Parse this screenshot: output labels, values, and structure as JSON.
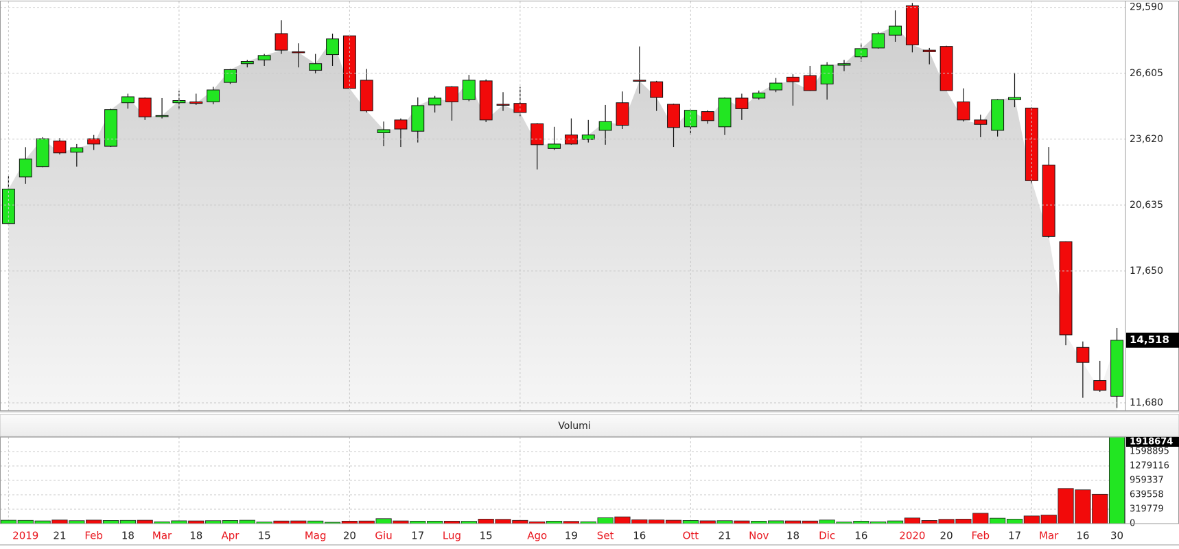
{
  "chart_data": [
    {
      "type": "candlestick",
      "open": [
        19800,
        21910,
        22380,
        23540,
        23030,
        23640,
        23300,
        25270,
        25480,
        24660,
        25270,
        25310,
        25310,
        26190,
        27040,
        27210,
        28400,
        27580,
        26740,
        27450,
        28300,
        26290,
        23910,
        24490,
        23980,
        25170,
        25990,
        25410,
        26260,
        25200,
        25240,
        24320,
        23200,
        23810,
        23610,
        24020,
        25270,
        26290,
        26220,
        25200,
        24180,
        24870,
        24180,
        25480,
        25480,
        25850,
        26430,
        26500,
        26120,
        26970,
        27350,
        27750,
        28330,
        29660,
        27650,
        27820,
        25310,
        24490,
        24020,
        25410,
        25030,
        22450,
        18980,
        14190,
        12690,
        11980
      ],
      "high": [
        21940,
        23260,
        23710,
        23670,
        23400,
        23810,
        25000,
        25680,
        25510,
        25480,
        25820,
        25680,
        25990,
        26800,
        27210,
        27480,
        29010,
        27960,
        27480,
        28400,
        28330,
        26800,
        24420,
        24560,
        25510,
        25580,
        26020,
        26530,
        26330,
        25750,
        25990,
        24350,
        24180,
        24560,
        24490,
        25170,
        25780,
        27820,
        26260,
        25230,
        25000,
        24930,
        25510,
        25680,
        25820,
        26390,
        26560,
        26940,
        27110,
        27210,
        27960,
        28470,
        29450,
        29790,
        27750,
        27850,
        25920,
        24730,
        25440,
        26630,
        25060,
        23270,
        19000,
        14460,
        13580,
        15070
      ],
      "low": [
        19730,
        21600,
        22350,
        22930,
        22380,
        23130,
        23270,
        25000,
        24490,
        24560,
        24960,
        25170,
        25200,
        26120,
        26870,
        26940,
        27480,
        26870,
        26600,
        26940,
        25900,
        24830,
        23300,
        23270,
        23470,
        24830,
        24460,
        25340,
        24390,
        24900,
        24660,
        22250,
        23130,
        23370,
        23470,
        23370,
        24080,
        25680,
        24900,
        23270,
        23810,
        24320,
        23810,
        24490,
        25410,
        25750,
        25140,
        25800,
        25410,
        26700,
        27140,
        27720,
        28030,
        27550,
        27010,
        25800,
        24420,
        23710,
        23740,
        25070,
        21600,
        19150,
        14290,
        11910,
        12180,
        11450
      ],
      "close": [
        21360,
        22720,
        23640,
        23000,
        23230,
        23400,
        24960,
        25540,
        24630,
        24690,
        25370,
        25240,
        25850,
        26770,
        27140,
        27410,
        27650,
        27550,
        27040,
        28160,
        25920,
        24900,
        24050,
        24080,
        25140,
        25480,
        25310,
        26290,
        24490,
        25170,
        24830,
        23370,
        23400,
        23400,
        23810,
        24420,
        24250,
        26260,
        25510,
        24150,
        24930,
        24460,
        25480,
        25000,
        25710,
        26160,
        26220,
        25820,
        26970,
        27040,
        27720,
        28400,
        28740,
        27890,
        27580,
        25820,
        24490,
        24290,
        25410,
        25510,
        21740,
        19220,
        14760,
        13510,
        12250,
        14518
      ],
      "last_close_label": "14,518",
      "up_color": "#22e622",
      "down_color": "#f20a0a",
      "ylim": [
        11340,
        29860
      ],
      "yticks": [
        {
          "value": 11680,
          "label": "11,680"
        },
        {
          "value": 17650,
          "label": "17,650"
        },
        {
          "value": 20635,
          "label": "20,635"
        },
        {
          "value": 23620,
          "label": "23,620"
        },
        {
          "value": 26605,
          "label": "26,605"
        },
        {
          "value": 29590,
          "label": "29,590"
        }
      ],
      "grid": true
    },
    {
      "type": "bar",
      "title": "Volumi",
      "categories": [
        null,
        "2019",
        null,
        "21",
        null,
        "Feb",
        null,
        "18",
        null,
        "Mar",
        null,
        "18",
        null,
        "Apr",
        null,
        "15",
        null,
        null,
        "Mag",
        null,
        "20",
        null,
        "Giu",
        null,
        "17",
        null,
        "Lug",
        null,
        "15",
        null,
        null,
        "Ago",
        null,
        "19",
        null,
        "Set",
        null,
        "16",
        null,
        null,
        "Ott",
        null,
        "21",
        null,
        "Nov",
        null,
        "18",
        null,
        "Dic",
        null,
        "16",
        null,
        null,
        "2020",
        null,
        "20",
        null,
        "Feb",
        null,
        "17",
        null,
        "Mar",
        null,
        "16",
        null,
        "30"
      ],
      "values": [
        75000,
        72000,
        60000,
        80000,
        65000,
        78000,
        70000,
        72000,
        75000,
        40000,
        62000,
        60000,
        65000,
        70000,
        75000,
        35000,
        58000,
        60000,
        58000,
        30000,
        55000,
        58000,
        110000,
        60000,
        55000,
        55000,
        55000,
        52000,
        100000,
        95000,
        72000,
        40000,
        55000,
        50000,
        42000,
        130000,
        150000,
        85000,
        82000,
        75000,
        70000,
        62000,
        65000,
        60000,
        55000,
        62000,
        60000,
        58000,
        80000,
        35000,
        55000,
        40000,
        60000,
        125000,
        70000,
        95000,
        100000,
        230000,
        120000,
        100000,
        170000,
        190000,
        780000,
        750000,
        650000,
        1918674
      ],
      "month_label_color": "#e8141c",
      "ylim": [
        0,
        1918674
      ],
      "yticks": [
        0,
        319779,
        639558,
        959337,
        1279116,
        1598895
      ],
      "grid": true
    }
  ]
}
